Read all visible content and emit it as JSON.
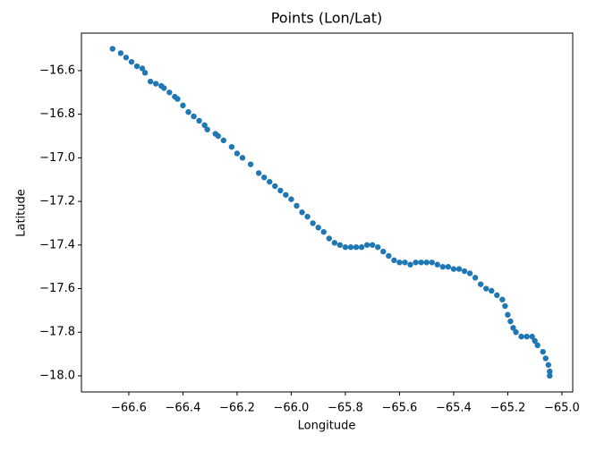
{
  "chart_data": {
    "type": "scatter",
    "title": "Points (Lon/Lat)",
    "xlabel": "Longitude",
    "ylabel": "Latitude",
    "color": "#1f77b4",
    "x": [
      -66.66,
      -66.63,
      -66.61,
      -66.59,
      -66.57,
      -66.55,
      -66.54,
      -66.52,
      -66.5,
      -66.48,
      -66.47,
      -66.45,
      -66.43,
      -66.42,
      -66.4,
      -66.38,
      -66.36,
      -66.34,
      -66.32,
      -66.31,
      -66.28,
      -66.27,
      -66.25,
      -66.22,
      -66.2,
      -66.18,
      -66.15,
      -66.12,
      -66.1,
      -66.08,
      -66.06,
      -66.04,
      -66.02,
      -66.0,
      -65.98,
      -65.96,
      -65.94,
      -65.92,
      -65.9,
      -65.88,
      -65.86,
      -65.84,
      -65.82,
      -65.8,
      -65.78,
      -65.76,
      -65.74,
      -65.72,
      -65.7,
      -65.68,
      -65.66,
      -65.64,
      -65.62,
      -65.6,
      -65.58,
      -65.56,
      -65.54,
      -65.52,
      -65.5,
      -65.48,
      -65.46,
      -65.44,
      -65.42,
      -65.4,
      -65.38,
      -65.36,
      -65.34,
      -65.32,
      -65.3,
      -65.28,
      -65.26,
      -65.24,
      -65.22,
      -65.21,
      -65.2,
      -65.19,
      -65.18,
      -65.17,
      -65.15,
      -65.13,
      -65.11,
      -65.1,
      -65.09,
      -65.07,
      -65.06,
      -65.05,
      -65.045,
      -65.045
    ],
    "values": [
      -16.5,
      -16.52,
      -16.54,
      -16.56,
      -16.58,
      -16.59,
      -16.61,
      -16.65,
      -16.66,
      -16.67,
      -16.68,
      -16.7,
      -16.72,
      -16.73,
      -16.76,
      -16.79,
      -16.81,
      -16.83,
      -16.85,
      -16.87,
      -16.89,
      -16.9,
      -16.92,
      -16.95,
      -16.98,
      -17.0,
      -17.03,
      -17.07,
      -17.09,
      -17.11,
      -17.13,
      -17.15,
      -17.17,
      -17.19,
      -17.22,
      -17.25,
      -17.27,
      -17.3,
      -17.32,
      -17.34,
      -17.37,
      -17.39,
      -17.4,
      -17.41,
      -17.41,
      -17.41,
      -17.41,
      -17.4,
      -17.4,
      -17.41,
      -17.43,
      -17.45,
      -17.47,
      -17.48,
      -17.48,
      -17.49,
      -17.48,
      -17.48,
      -17.48,
      -17.48,
      -17.49,
      -17.5,
      -17.5,
      -17.51,
      -17.51,
      -17.52,
      -17.53,
      -17.55,
      -17.58,
      -17.6,
      -17.61,
      -17.63,
      -17.65,
      -17.68,
      -17.72,
      -17.75,
      -17.78,
      -17.8,
      -17.82,
      -17.82,
      -17.82,
      -17.84,
      -17.86,
      -17.89,
      -17.92,
      -17.95,
      -17.98,
      -18.0
    ],
    "xlim": [
      -66.775,
      -64.96
    ],
    "ylim": [
      -16.428,
      -18.074
    ],
    "xticks": [
      {
        "value": -66.6,
        "label": "−66.6"
      },
      {
        "value": -66.4,
        "label": "−66.4"
      },
      {
        "value": -66.2,
        "label": "−66.2"
      },
      {
        "value": -66.0,
        "label": "−66.0"
      },
      {
        "value": -65.8,
        "label": "−65.8"
      },
      {
        "value": -65.6,
        "label": "−65.6"
      },
      {
        "value": -65.4,
        "label": "−65.4"
      },
      {
        "value": -65.2,
        "label": "−65.2"
      },
      {
        "value": -65.0,
        "label": "−65.0"
      }
    ],
    "yticks": [
      {
        "value": -16.6,
        "label": "−16.6"
      },
      {
        "value": -16.8,
        "label": "−16.8"
      },
      {
        "value": -17.0,
        "label": "−17.0"
      },
      {
        "value": -17.2,
        "label": "−17.2"
      },
      {
        "value": -17.4,
        "label": "−17.4"
      },
      {
        "value": -17.6,
        "label": "−17.6"
      },
      {
        "value": -17.8,
        "label": "−17.8"
      },
      {
        "value": -18.0,
        "label": "−18.0"
      }
    ]
  }
}
